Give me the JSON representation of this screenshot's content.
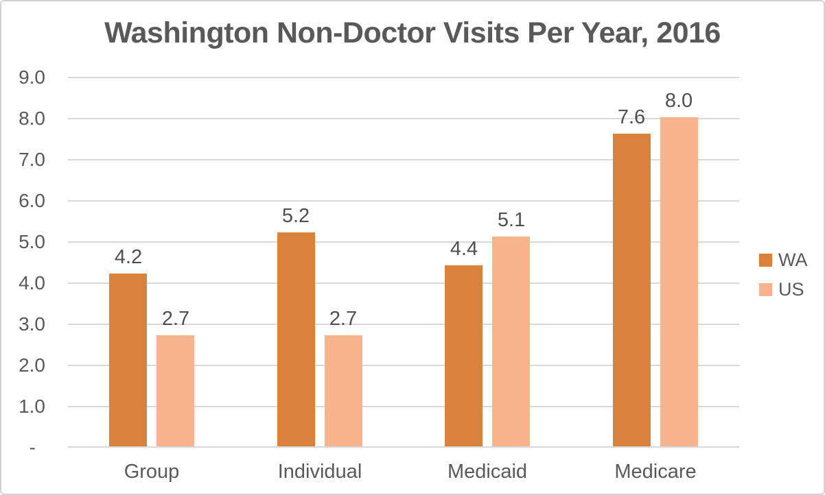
{
  "chart": {
    "title": "Washington Non-Doctor Visits Per Year, 2016"
  },
  "chart_data": {
    "type": "bar",
    "title": "Washington Non-Doctor Visits Per Year, 2016",
    "categories": [
      "Group",
      "Individual",
      "Medicaid",
      "Medicare"
    ],
    "series": [
      {
        "name": "WA",
        "color": "#D9823C",
        "values": [
          4.2,
          5.2,
          4.4,
          7.6
        ],
        "labels": [
          "4.2",
          "5.2",
          "4.4",
          "7.6"
        ]
      },
      {
        "name": "US",
        "color": "#F8B58D",
        "values": [
          2.7,
          2.7,
          5.1,
          8.0
        ],
        "labels": [
          "2.7",
          "2.7",
          "5.1",
          "8.0"
        ]
      }
    ],
    "ylim": [
      0,
      9
    ],
    "ytick_step": 1,
    "ytick_labels": [
      "-",
      "1.0",
      "2.0",
      "3.0",
      "4.0",
      "5.0",
      "6.0",
      "7.0",
      "8.0",
      "9.0"
    ],
    "grid": true,
    "data_labels_shown": true,
    "legend_position": "right",
    "colors": {
      "text": "#595959",
      "gridline": "#D9D9D9",
      "axis_line": "#D9D9D9",
      "border": "#D2D2D2",
      "background": "#FFFFFF"
    }
  }
}
